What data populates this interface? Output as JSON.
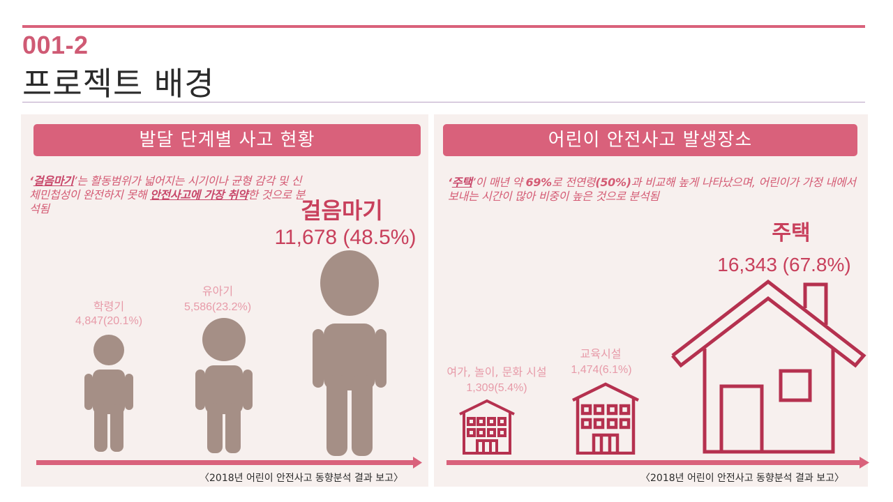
{
  "header": {
    "number": "001-2",
    "title": "프로젝트 배경"
  },
  "left_panel": {
    "title": "발달 단계별 사고 현황",
    "desc": {
      "q1": "‘",
      "b1": "걸음마기",
      "t1": "’는 활동범위가 넓어지는 시기이나 균형 감각 및 신체민첩성이 완전하지 못해 ",
      "b2": "안전사고에 가장 취약",
      "t2": "한 것으로 분석됨"
    },
    "groups": [
      {
        "label": "학령기",
        "value": "4,847(20.1%)"
      },
      {
        "label": "유아기",
        "value": "5,586(23.2%)"
      },
      {
        "label": "걸음마기",
        "value": "11,678 (48.5%)"
      }
    ],
    "figure_icon": "person-silhouette-icon",
    "figure_color": "#a58f86",
    "source": "〈2018년 어린이 안전사고 동향분석 결과 보고〉"
  },
  "right_panel": {
    "title": "어린이 안전사고 발생장소",
    "desc": {
      "q1": "‘",
      "b1": "주택",
      "t1": "’이 매년 약 ",
      "b2": "69%",
      "t2": "로 전연령",
      "b3": "(50%)",
      "t3": "과 비교해 높게 나타났으며, 어린이가 가정 내에서 보내는 시간이 많아 비중이 높은 것으로 분석됨"
    },
    "places": [
      {
        "label": "여가, 놀이, 문화 시설",
        "value": "1,309(5.4%)"
      },
      {
        "label": "교육시설",
        "value": "1,474(6.1%)"
      },
      {
        "label": "주택",
        "value": "16,343 (67.8%)"
      }
    ],
    "building_icon": "building-icon",
    "house_icon": "house-icon",
    "icon_color": "#b5314f",
    "source": "〈2018년 어린이 안전사고 동향분석 결과 보고〉"
  },
  "accent_color": "#d9617b"
}
